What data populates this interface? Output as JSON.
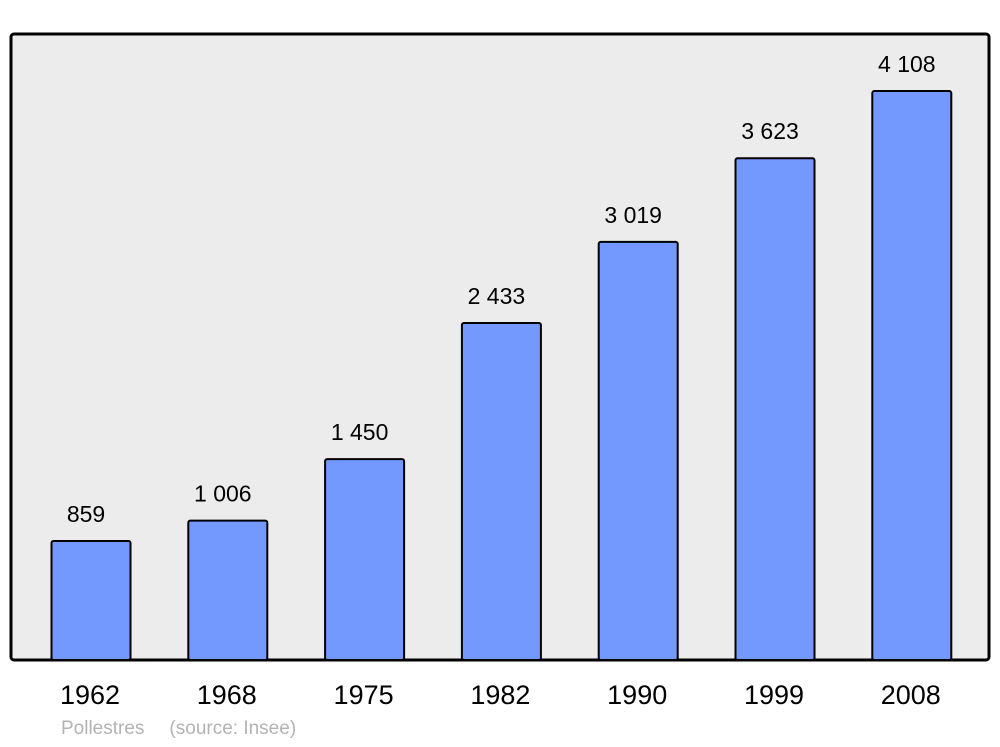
{
  "chart_data": {
    "type": "bar",
    "categories": [
      "1962",
      "1968",
      "1975",
      "1982",
      "1990",
      "1999",
      "2008"
    ],
    "values": [
      859,
      1006,
      1450,
      2433,
      3019,
      3623,
      4108
    ],
    "value_labels": [
      "859",
      "1 006",
      "1 450",
      "2 433",
      "3 019",
      "3 623",
      "4 108"
    ],
    "title": "",
    "xlabel": "",
    "ylabel": "",
    "ylim": [
      0,
      4520
    ],
    "grid": false,
    "legend": "none",
    "colors": {
      "bar": "#7399ff",
      "plot_background": "#ececec",
      "frame": "#000000",
      "footer_text": "#b3b3b3"
    }
  },
  "footer": {
    "place": "Pollestres",
    "source": "(source: Insee)"
  }
}
